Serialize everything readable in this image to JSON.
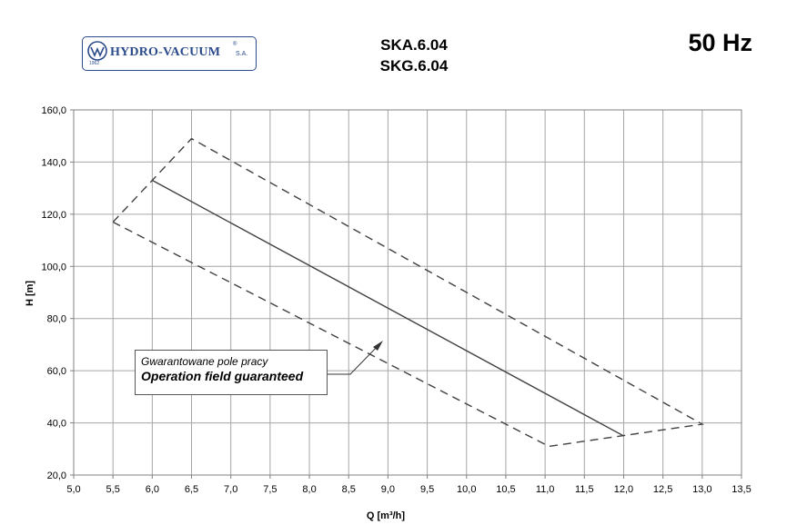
{
  "header": {
    "logo_text": "HYDRO-VACUUM",
    "logo_reg": "®",
    "logo_suffix": "S.A.",
    "logo_year": "1962",
    "model_1": "SKA.6.04",
    "model_2": "SKG.6.04",
    "frequency": "50 Hz"
  },
  "annotation": {
    "line_pl": "Gwarantowane pole pracy",
    "line_en": "Operation field guaranteed"
  },
  "colors": {
    "curve": "#404040",
    "grid": "#a6a6a6",
    "logo": "#2a4a8c"
  },
  "chart_data": {
    "type": "line",
    "title": "",
    "xlabel": "Q [m³/h]",
    "ylabel": "H [m]",
    "xlim": [
      5.0,
      13.5
    ],
    "ylim": [
      20.0,
      160.0
    ],
    "x_ticks": [
      "5,0",
      "5,5",
      "6,0",
      "6,5",
      "7,0",
      "7,5",
      "8,0",
      "8,5",
      "9,0",
      "9,5",
      "10,0",
      "10,5",
      "11,0",
      "11,5",
      "12,0",
      "12,5",
      "13,0",
      "13,5"
    ],
    "y_ticks": [
      "20,0",
      "40,0",
      "60,0",
      "80,0",
      "100,0",
      "120,0",
      "140,0",
      "160,0"
    ],
    "grid": true,
    "series": [
      {
        "style": "solid",
        "x": [
          6.0,
          12.0
        ],
        "y": [
          133.0,
          35.0
        ]
      },
      {
        "style": "dashed",
        "x": [
          5.5,
          6.5,
          13.0,
          11.05,
          5.5
        ],
        "y": [
          117.0,
          149.0,
          39.5,
          31.0,
          117.0
        ]
      }
    ]
  }
}
